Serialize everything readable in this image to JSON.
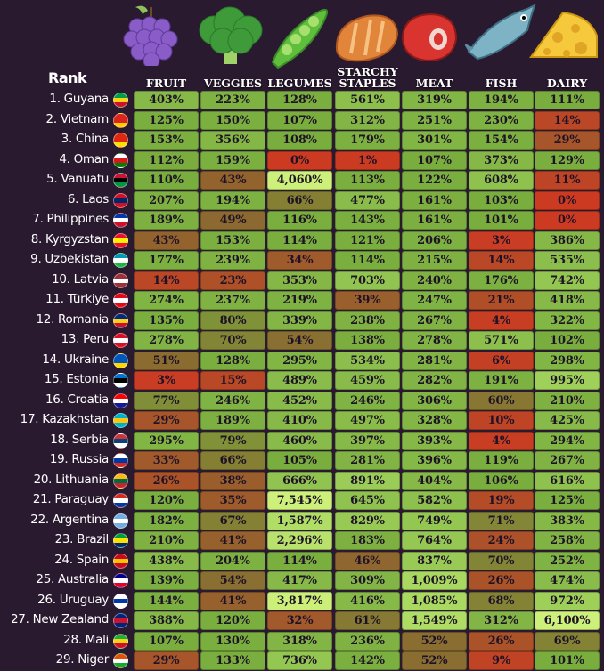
{
  "chart_data": {
    "type": "table",
    "row_header": "Rank",
    "columns": [
      "FRUIT",
      "VEGGIES",
      "LEGUMES",
      "STARCHY\nSTAPLES",
      "MEAT",
      "FISH",
      "DAIRY"
    ],
    "food_icons": [
      "grapes-icon",
      "broccoli-icon",
      "peapod-icon",
      "bread-icon",
      "steak-icon",
      "fish-icon",
      "cheese-icon"
    ],
    "rows": [
      {
        "rank": "1. Guyana",
        "flag": [
          "#009e49",
          "#fcd116",
          "#ce1126"
        ],
        "values": [
          "403%",
          "223%",
          "128%",
          "561%",
          "319%",
          "194%",
          "111%"
        ]
      },
      {
        "rank": "2. Vietnam",
        "flag": [
          "#da251d",
          "#da251d",
          "#ffcd00"
        ],
        "values": [
          "125%",
          "150%",
          "107%",
          "312%",
          "251%",
          "230%",
          "14%"
        ]
      },
      {
        "rank": "3. China",
        "flag": [
          "#de2910",
          "#de2910",
          "#ffde00"
        ],
        "values": [
          "153%",
          "356%",
          "108%",
          "179%",
          "301%",
          "154%",
          "29%"
        ]
      },
      {
        "rank": "4. Oman",
        "flag": [
          "#ffffff",
          "#db161b",
          "#008000"
        ],
        "values": [
          "112%",
          "159%",
          "0%",
          "1%",
          "107%",
          "373%",
          "129%"
        ]
      },
      {
        "rank": "5. Vanuatu",
        "flag": [
          "#d21034",
          "#000000",
          "#009543"
        ],
        "values": [
          "110%",
          "43%",
          "4,060%",
          "113%",
          "122%",
          "608%",
          "11%"
        ]
      },
      {
        "rank": "6. Laos",
        "flag": [
          "#ce1126",
          "#002868",
          "#ce1126"
        ],
        "values": [
          "207%",
          "194%",
          "66%",
          "477%",
          "161%",
          "103%",
          "0%"
        ]
      },
      {
        "rank": "7. Philippines",
        "flag": [
          "#0038a8",
          "#ffffff",
          "#ce1126"
        ],
        "values": [
          "189%",
          "49%",
          "116%",
          "143%",
          "161%",
          "101%",
          "0%"
        ]
      },
      {
        "rank": "8. Kyrgyzstan",
        "flag": [
          "#e8112d",
          "#ffef00",
          "#e8112d"
        ],
        "values": [
          "43%",
          "153%",
          "114%",
          "121%",
          "206%",
          "3%",
          "386%"
        ]
      },
      {
        "rank": "9. Uzbekistan",
        "flag": [
          "#0099b5",
          "#ffffff",
          "#1eb53a"
        ],
        "values": [
          "177%",
          "239%",
          "34%",
          "114%",
          "215%",
          "14%",
          "535%"
        ]
      },
      {
        "rank": "10. Latvia",
        "flag": [
          "#9e3039",
          "#ffffff",
          "#9e3039"
        ],
        "values": [
          "14%",
          "23%",
          "353%",
          "703%",
          "240%",
          "176%",
          "742%"
        ]
      },
      {
        "rank": "11. Türkiye",
        "flag": [
          "#e30a17",
          "#ffffff",
          "#e30a17"
        ],
        "values": [
          "274%",
          "237%",
          "219%",
          "39%",
          "247%",
          "21%",
          "418%"
        ]
      },
      {
        "rank": "12. Romania",
        "flag": [
          "#002b7f",
          "#fcd116",
          "#ce1126"
        ],
        "values": [
          "135%",
          "80%",
          "339%",
          "238%",
          "267%",
          "4%",
          "322%"
        ]
      },
      {
        "rank": "13. Peru",
        "flag": [
          "#d91023",
          "#ffffff",
          "#d91023"
        ],
        "values": [
          "278%",
          "70%",
          "54%",
          "138%",
          "278%",
          "571%",
          "102%"
        ]
      },
      {
        "rank": "14. Ukraine",
        "flag": [
          "#0057b7",
          "#0057b7",
          "#ffd700"
        ],
        "values": [
          "51%",
          "128%",
          "295%",
          "534%",
          "281%",
          "6%",
          "298%"
        ]
      },
      {
        "rank": "15. Estonia",
        "flag": [
          "#0072ce",
          "#000000",
          "#ffffff"
        ],
        "values": [
          "3%",
          "15%",
          "489%",
          "459%",
          "282%",
          "191%",
          "995%"
        ]
      },
      {
        "rank": "16. Croatia",
        "flag": [
          "#ff0000",
          "#ffffff",
          "#171796"
        ],
        "values": [
          "77%",
          "246%",
          "452%",
          "246%",
          "306%",
          "60%",
          "210%"
        ]
      },
      {
        "rank": "17. Kazakhstan",
        "flag": [
          "#00afca",
          "#fec50c",
          "#00afca"
        ],
        "values": [
          "29%",
          "189%",
          "410%",
          "497%",
          "328%",
          "10%",
          "425%"
        ]
      },
      {
        "rank": "18. Serbia",
        "flag": [
          "#c6363c",
          "#0c4076",
          "#ffffff"
        ],
        "values": [
          "295%",
          "79%",
          "460%",
          "397%",
          "393%",
          "4%",
          "294%"
        ]
      },
      {
        "rank": "19. Russia",
        "flag": [
          "#ffffff",
          "#0039a6",
          "#d52b1e"
        ],
        "values": [
          "33%",
          "66%",
          "105%",
          "281%",
          "396%",
          "119%",
          "267%"
        ]
      },
      {
        "rank": "20. Lithuania",
        "flag": [
          "#fdb913",
          "#006a44",
          "#c1272d"
        ],
        "values": [
          "26%",
          "38%",
          "666%",
          "891%",
          "404%",
          "106%",
          "616%"
        ]
      },
      {
        "rank": "21. Paraguay",
        "flag": [
          "#d52b1e",
          "#ffffff",
          "#0038a8"
        ],
        "values": [
          "120%",
          "35%",
          "7,545%",
          "645%",
          "582%",
          "19%",
          "125%"
        ]
      },
      {
        "rank": "22. Argentina",
        "flag": [
          "#74acdf",
          "#ffffff",
          "#74acdf"
        ],
        "values": [
          "182%",
          "67%",
          "1,587%",
          "829%",
          "749%",
          "71%",
          "383%"
        ]
      },
      {
        "rank": "23. Brazil",
        "flag": [
          "#009c3b",
          "#ffdf00",
          "#002776"
        ],
        "values": [
          "210%",
          "41%",
          "2,296%",
          "183%",
          "764%",
          "24%",
          "258%"
        ]
      },
      {
        "rank": "24. Spain",
        "flag": [
          "#c60b1e",
          "#ffc400",
          "#c60b1e"
        ],
        "values": [
          "438%",
          "204%",
          "114%",
          "46%",
          "837%",
          "70%",
          "252%"
        ]
      },
      {
        "rank": "25. Australia",
        "flag": [
          "#00008b",
          "#ffffff",
          "#e4002b"
        ],
        "values": [
          "139%",
          "54%",
          "417%",
          "309%",
          "1,009%",
          "26%",
          "474%"
        ]
      },
      {
        "rank": "26. Uruguay",
        "flag": [
          "#ffffff",
          "#0038a8",
          "#ffffff"
        ],
        "values": [
          "144%",
          "41%",
          "3,817%",
          "416%",
          "1,085%",
          "68%",
          "972%"
        ]
      },
      {
        "rank": "27. New Zealand",
        "flag": [
          "#00247d",
          "#cc142b",
          "#00247d"
        ],
        "values": [
          "388%",
          "120%",
          "32%",
          "61%",
          "1,549%",
          "312%",
          "6,100%"
        ]
      },
      {
        "rank": "28. Mali",
        "flag": [
          "#14b53a",
          "#fcd116",
          "#ce1126"
        ],
        "values": [
          "107%",
          "130%",
          "318%",
          "236%",
          "52%",
          "26%",
          "69%"
        ]
      },
      {
        "rank": "29. Niger",
        "flag": [
          "#e05206",
          "#ffffff",
          "#0db02b"
        ],
        "values": [
          "29%",
          "133%",
          "736%",
          "142%",
          "52%",
          "9%",
          "101%"
        ]
      }
    ],
    "color_scale": {
      "low": "#cc3a22",
      "mid_low": "#8a6a30",
      "mid": "#79ad3e",
      "high": "#cdf07a"
    }
  }
}
